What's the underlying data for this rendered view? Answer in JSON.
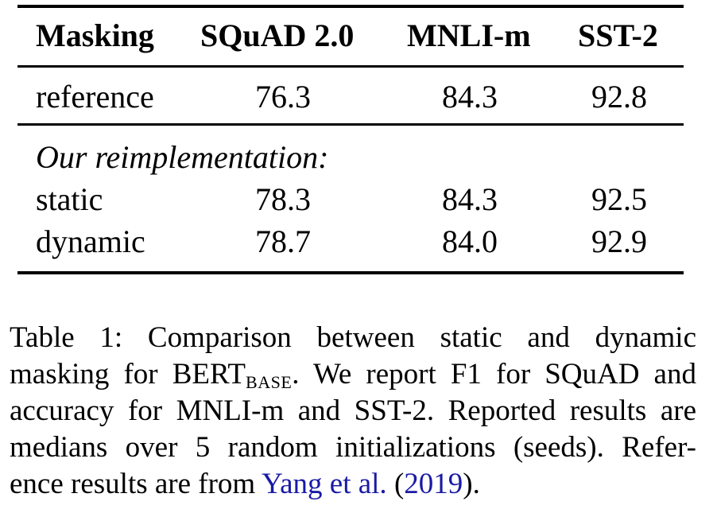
{
  "table": {
    "headers": [
      "Masking",
      "SQuAD 2.0",
      "MNLI-m",
      "SST-2"
    ],
    "reference_row": {
      "label": "reference",
      "values": [
        "76.3",
        "84.3",
        "92.8"
      ]
    },
    "group_label": "Our reimplementation:",
    "rows": [
      {
        "label": "static",
        "values": [
          "78.3",
          "84.3",
          "92.5"
        ]
      },
      {
        "label": "dynamic",
        "values": [
          "78.7",
          "84.0",
          "92.9"
        ]
      }
    ]
  },
  "caption": {
    "line1": "Table 1:  Comparison between static and dynamic",
    "line2_pre": "masking for BERT",
    "line2_sub": "BASE",
    "line2_post": ".  We report F1 for SQuAD and",
    "line3": "accuracy for MNLI-m and SST-2. Reported results are",
    "line4": "medians over 5 random initializations (seeds).  Refer-",
    "line5_pre": "ence results are from ",
    "line5_author": "Yang et al.",
    "line5_mid": " (",
    "line5_year": "2019",
    "line5_post": ")."
  }
}
